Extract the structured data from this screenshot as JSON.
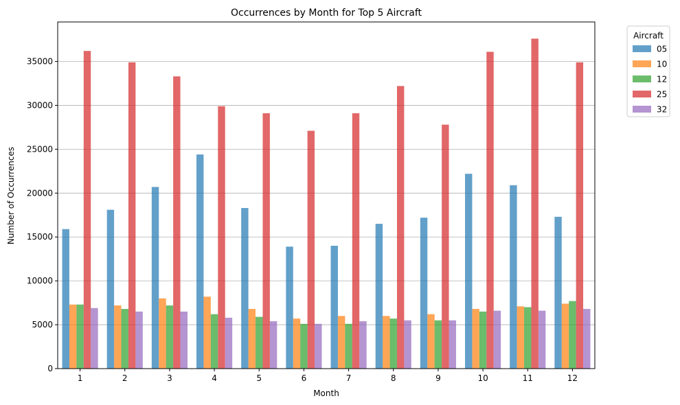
{
  "chart_data": {
    "type": "bar",
    "title": "Occurrences by Month for Top 5 Aircraft",
    "xlabel": "Month",
    "ylabel": "Number of Occurrences",
    "categories": [
      "1",
      "2",
      "3",
      "4",
      "5",
      "6",
      "7",
      "8",
      "9",
      "10",
      "11",
      "12"
    ],
    "ylim": [
      0,
      39500
    ],
    "yticks": [
      0,
      5000,
      10000,
      15000,
      20000,
      25000,
      30000,
      35000
    ],
    "grid": "y",
    "legend": {
      "title": "Aircraft",
      "placement": "outside-top-right"
    },
    "series": [
      {
        "name": "05",
        "color": "#1f77b4",
        "values": [
          15900,
          18100,
          20700,
          24400,
          18300,
          13900,
          14000,
          16500,
          17200,
          22200,
          20900,
          17300
        ]
      },
      {
        "name": "10",
        "color": "#ff7f0e",
        "values": [
          7300,
          7200,
          8000,
          8200,
          6800,
          5700,
          6000,
          6000,
          6200,
          6800,
          7100,
          7400
        ]
      },
      {
        "name": "12",
        "color": "#2ca02c",
        "values": [
          7300,
          6800,
          7200,
          6200,
          5900,
          5100,
          5100,
          5700,
          5500,
          6500,
          7000,
          7700
        ]
      },
      {
        "name": "25",
        "color": "#d62728",
        "values": [
          36200,
          34900,
          33300,
          29900,
          29100,
          27100,
          29100,
          32200,
          27800,
          36100,
          37600,
          34900
        ]
      },
      {
        "name": "32",
        "color": "#9467bd",
        "values": [
          6900,
          6500,
          6500,
          5800,
          5400,
          5100,
          5400,
          5500,
          5500,
          6600,
          6600,
          6800
        ]
      }
    ]
  }
}
